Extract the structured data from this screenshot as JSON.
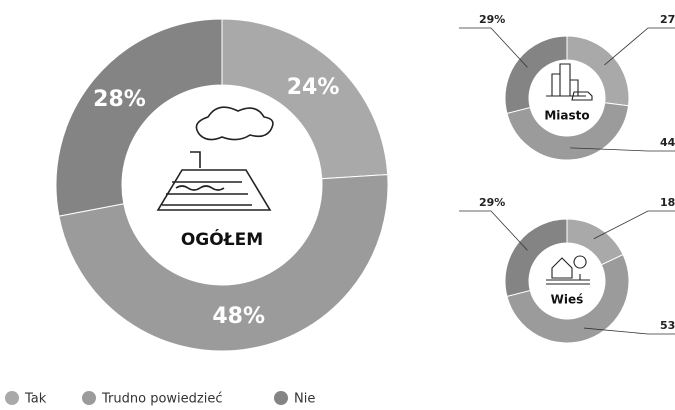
{
  "legend": {
    "categories": [
      "Tak",
      "Trudno powiedzieć",
      "Nie"
    ],
    "colors": [
      "#a9a9a9",
      "#9b9b9b",
      "#848484"
    ]
  },
  "chart_data": [
    {
      "type": "pie",
      "title": "OGÓŁEM",
      "values": [
        24,
        48,
        28
      ],
      "value_labels": [
        "24%",
        "48%",
        "28%"
      ]
    },
    {
      "type": "pie",
      "title": "Miasto",
      "values": [
        27,
        44,
        29
      ],
      "value_labels": [
        "27%",
        "44%",
        "29%"
      ]
    },
    {
      "type": "pie",
      "title": "Wieś",
      "values": [
        18,
        53,
        29
      ],
      "value_labels": [
        "18%",
        "53%",
        "29%"
      ]
    }
  ]
}
